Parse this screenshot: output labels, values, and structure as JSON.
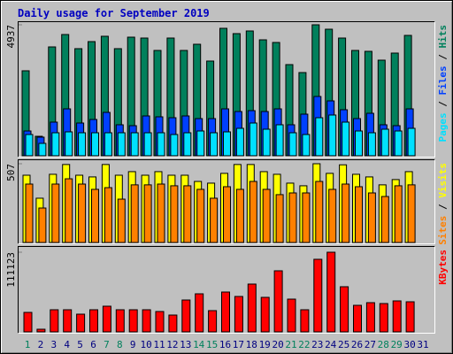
{
  "chart_data": [
    {
      "type": "bar",
      "title": "Daily usage for September 2019",
      "categories": [
        "1",
        "2",
        "3",
        "4",
        "5",
        "6",
        "7",
        "8",
        "9",
        "10",
        "11",
        "12",
        "13",
        "14",
        "15",
        "16",
        "17",
        "18",
        "19",
        "20",
        "21",
        "22",
        "23",
        "24",
        "25",
        "26",
        "27",
        "28",
        "29",
        "30",
        "31"
      ],
      "category_colors": [
        "#00805c",
        "#000080",
        "#000080",
        "#000080",
        "#000080",
        "#000080",
        "#00805c",
        "#00805c",
        "#000080",
        "#000080",
        "#000080",
        "#000080",
        "#000080",
        "#00805c",
        "#00805c",
        "#000080",
        "#000080",
        "#000080",
        "#000080",
        "#000080",
        "#00805c",
        "#00805c",
        "#000080",
        "#000080",
        "#000080",
        "#000080",
        "#000080",
        "#00805c",
        "#00805c",
        "#000080",
        "#000080"
      ],
      "ylim": [
        0,
        4937
      ],
      "yticks": [
        4937
      ],
      "legend_separator": " / ",
      "series": [
        {
          "name": "Hits",
          "color": "#00805c",
          "values": [
            3203,
            734,
            4103,
            4570,
            4037,
            4303,
            4504,
            4037,
            4470,
            4437,
            3970,
            4437,
            3970,
            4203,
            3570,
            4804,
            4604,
            4704,
            4370,
            4270,
            3436,
            3136,
            4937,
            4770,
            4437,
            3970,
            3936,
            3603,
            3870,
            4537,
            null
          ]
        },
        {
          "name": "Files",
          "color": "#0040ff",
          "values": [
            934,
            701,
            1268,
            1768,
            1234,
            1368,
            1635,
            1168,
            1134,
            1501,
            1468,
            1434,
            1501,
            1401,
            1401,
            1768,
            1668,
            1701,
            1668,
            1768,
            1168,
            1568,
            2235,
            2068,
            1735,
            1401,
            1601,
            1168,
            1134,
            1768,
            null
          ]
        },
        {
          "name": "Pages",
          "color": "#00e0ff",
          "values": [
            801,
            467,
            867,
            901,
            867,
            867,
            867,
            867,
            867,
            867,
            867,
            801,
            867,
            934,
            867,
            901,
            1034,
            1234,
            1001,
            1168,
            867,
            801,
            1434,
            1535,
            1268,
            934,
            867,
            1001,
            934,
            1034,
            null
          ]
        }
      ]
    },
    {
      "type": "bar",
      "ylim": [
        0,
        507
      ],
      "yticks": [
        507
      ],
      "series": [
        {
          "name": "Visits",
          "color": "#ffff00",
          "values": [
            433,
            285,
            439,
            502,
            433,
            422,
            502,
            433,
            456,
            433,
            456,
            433,
            433,
            393,
            382,
            445,
            502,
            502,
            456,
            439,
            382,
            365,
            507,
            445,
            500,
            439,
            422,
            371,
            405,
            456,
            null
          ]
        },
        {
          "name": "Sites",
          "color": "#ff8000",
          "values": [
            376,
            222,
            376,
            410,
            376,
            342,
            353,
            279,
            371,
            371,
            376,
            365,
            365,
            342,
            285,
            359,
            342,
            393,
            342,
            308,
            319,
            319,
            393,
            342,
            376,
            359,
            319,
            296,
            365,
            371,
            null
          ]
        }
      ]
    },
    {
      "type": "bar",
      "ylim": [
        0,
        111123
      ],
      "yticks": [
        111123
      ],
      "series": [
        {
          "name": "KBytes",
          "color": "#ff0000",
          "values": [
            27170,
            3705,
            30875,
            30875,
            24700,
            30875,
            35815,
            30875,
            30875,
            30875,
            28405,
            23465,
            44460,
            53105,
            29640,
            55575,
            49400,
            66690,
            48165,
            85215,
            45695,
            30875,
            101270,
            111123,
            62985,
            37050,
            40755,
            39520,
            43225,
            41990,
            null
          ]
        }
      ]
    }
  ]
}
